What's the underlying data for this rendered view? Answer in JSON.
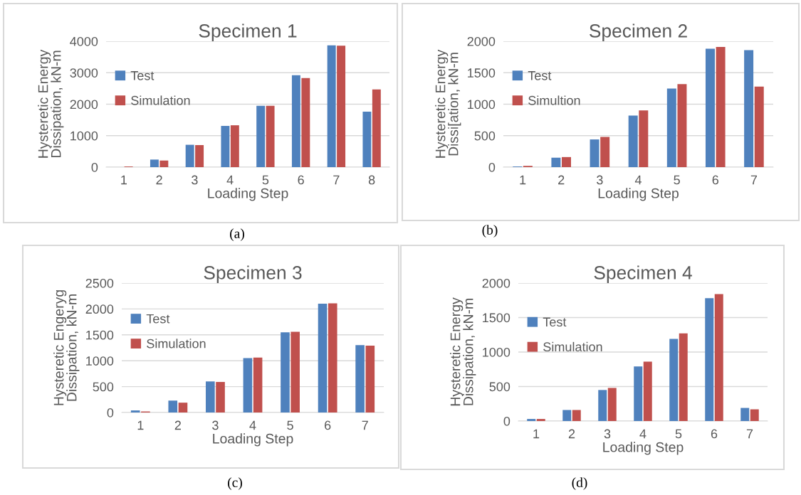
{
  "chart_data": [
    {
      "type": "bar",
      "title": "Specimen 1",
      "xlabel": "Loading Step",
      "ylabel": "Hysteretic Energy\nDissipation, kN-m",
      "categories": [
        "1",
        "2",
        "3",
        "4",
        "5",
        "6",
        "7",
        "8"
      ],
      "series": [
        {
          "name": "Test",
          "color": "#4f81bd",
          "values": [
            null,
            240,
            710,
            1310,
            1950,
            2920,
            3870,
            1760
          ]
        },
        {
          "name": "Simulation",
          "color": "#c0504d",
          "values": [
            20,
            210,
            700,
            1330,
            1950,
            2830,
            3860,
            2470
          ]
        }
      ],
      "ylim": [
        0,
        4000
      ],
      "yticks": [
        0,
        1000,
        2000,
        3000,
        4000
      ],
      "grid": "y",
      "legend": "left",
      "annotations": [
        "(a)"
      ]
    },
    {
      "type": "bar",
      "title": "Specimen 2",
      "xlabel": "Loading Step",
      "ylabel": "Hysteretic Energy\nDissi[ation, kN-m",
      "categories": [
        "1",
        "2",
        "3",
        "4",
        "5",
        "6",
        "7"
      ],
      "series": [
        {
          "name": "Test",
          "color": "#4f81bd",
          "values": [
            10,
            150,
            440,
            820,
            1250,
            1880,
            1860
          ]
        },
        {
          "name": "Simultion",
          "color": "#c0504d",
          "values": [
            20,
            160,
            480,
            900,
            1320,
            1910,
            1280
          ]
        }
      ],
      "ylim": [
        0,
        2000
      ],
      "yticks": [
        0,
        500,
        1000,
        1500,
        2000
      ],
      "grid": "y",
      "legend": "left",
      "annotations": [
        "(b)"
      ]
    },
    {
      "type": "bar",
      "title": "Specimen 3",
      "xlabel": "Loading Step",
      "ylabel": "Hysteretic Engeryg\nDissipation, kN-m",
      "categories": [
        "1",
        "2",
        "3",
        "4",
        "5",
        "6",
        "7"
      ],
      "series": [
        {
          "name": "Test",
          "color": "#4f81bd",
          "values": [
            40,
            230,
            600,
            1050,
            1550,
            2100,
            1300
          ]
        },
        {
          "name": "Simulation",
          "color": "#c0504d",
          "values": [
            20,
            190,
            590,
            1060,
            1560,
            2110,
            1290
          ]
        }
      ],
      "ylim": [
        0,
        2500
      ],
      "yticks": [
        0,
        500,
        1000,
        1500,
        2000,
        2500
      ],
      "grid": "y",
      "legend": "left",
      "annotations": [
        "(c)"
      ]
    },
    {
      "type": "bar",
      "title": "Specimen 4",
      "xlabel": "Loading Step",
      "ylabel": "Hysteretic Energy\nDissipation, kN-m",
      "categories": [
        "1",
        "2",
        "3",
        "4",
        "5",
        "6",
        "7"
      ],
      "series": [
        {
          "name": "Test",
          "color": "#4f81bd",
          "values": [
            30,
            160,
            450,
            790,
            1190,
            1780,
            190
          ]
        },
        {
          "name": "Simulation",
          "color": "#c0504d",
          "values": [
            30,
            160,
            480,
            860,
            1270,
            1840,
            170
          ]
        }
      ],
      "ylim": [
        0,
        2000
      ],
      "yticks": [
        0,
        500,
        1000,
        1500,
        2000
      ],
      "grid": "y",
      "legend": "left",
      "annotations": [
        "(d)"
      ]
    }
  ]
}
